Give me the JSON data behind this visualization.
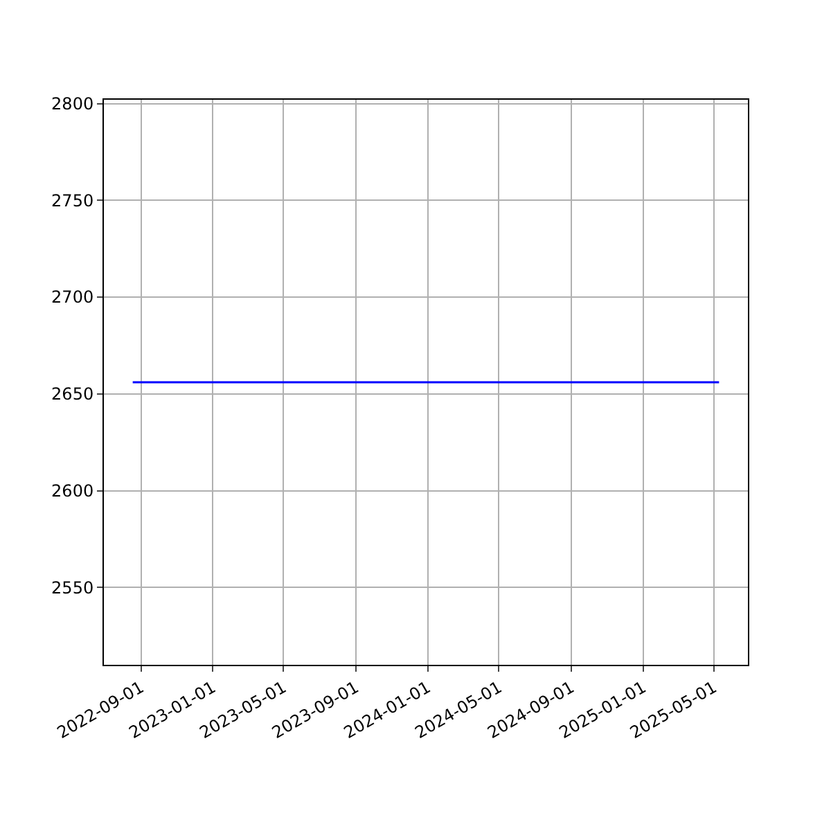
{
  "chart_data": {
    "type": "line",
    "x": [
      "2022-08-18",
      "2025-05-10"
    ],
    "series": [
      {
        "color": "#0000ff",
        "values": [
          2656,
          2656
        ]
      }
    ],
    "xlim": [
      "2022-06-30",
      "2025-06-28"
    ],
    "xticks": [
      "2022-09-01",
      "2023-01-01",
      "2023-05-01",
      "2023-09-01",
      "2024-01-01",
      "2024-05-01",
      "2024-09-01",
      "2025-01-01",
      "2025-05-01"
    ],
    "ylim": [
      2510,
      2802
    ],
    "yticks": [
      2550,
      2600,
      2650,
      2700,
      2750,
      2800
    ],
    "grid": true,
    "marker": "none",
    "line_style": "solid"
  }
}
